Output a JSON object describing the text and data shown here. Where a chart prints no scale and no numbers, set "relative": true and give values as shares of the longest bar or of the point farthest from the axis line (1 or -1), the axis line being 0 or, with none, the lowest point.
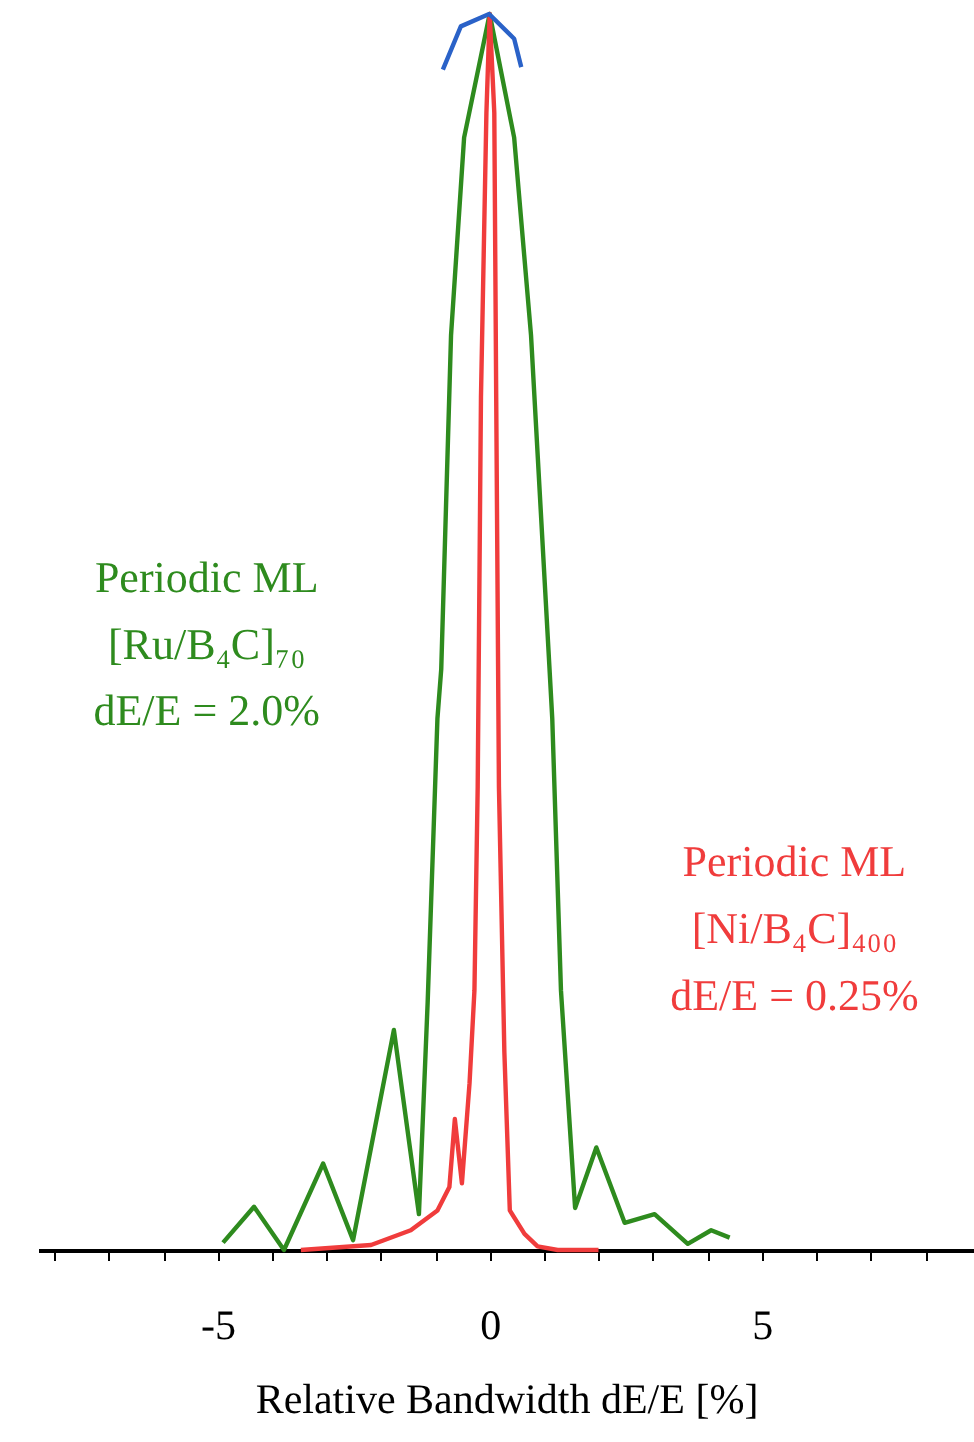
{
  "chart_data": {
    "type": "line",
    "relative": true,
    "xlabel": "Relative Bandwidth dE/E [%]",
    "xlim": [
      -8.3,
      8.9
    ],
    "xticks": [
      {
        "value": -8,
        "label": null
      },
      {
        "value": -7,
        "label": null
      },
      {
        "value": -6,
        "label": null
      },
      -5,
      {
        "value": -4,
        "label": null
      },
      {
        "value": -3,
        "label": null
      },
      {
        "value": -2,
        "label": null
      },
      {
        "value": -1,
        "label": null
      },
      0,
      {
        "value": 1,
        "label": null
      },
      {
        "value": 2,
        "label": null
      },
      {
        "value": 3,
        "label": null
      },
      {
        "value": 4,
        "label": null
      },
      5,
      {
        "value": 6,
        "label": null
      },
      {
        "value": 7,
        "label": null
      },
      {
        "value": 8,
        "label": null
      }
    ],
    "series": [
      {
        "name": "Periodic ML\n[Ru/B₄C]₇₀\ndE/E = 2.0%",
        "color": "#2e8b1e",
        "x": [
          -4.9,
          -4.33,
          -3.78,
          -3.06,
          -2.51,
          -1.76,
          -1.3,
          -1.14,
          -0.96,
          -0.89,
          -0.71,
          -0.47,
          0,
          0.45,
          0.76,
          1.1,
          1.15,
          1.31,
          1.57,
          1.96,
          2.48,
          3.03,
          3.64,
          4.07,
          4.41
        ],
        "values": [
          0.006,
          0.035,
          0,
          0.07,
          0.008,
          0.178,
          0.029,
          0.2,
          0.43,
          0.47,
          0.74,
          0.9,
          1,
          0.9,
          0.74,
          0.47,
          0.43,
          0.21,
          0.034,
          0.083,
          0.022,
          0.029,
          0.005,
          0.016,
          0.01
        ]
      },
      {
        "name": "Periodic ML\n[Ni/B₄C]₄₀₀\ndE/E = 0.25%",
        "color": "#f03c3c",
        "x": [
          -3.47,
          -2.18,
          -1.45,
          -0.96,
          -0.74,
          -0.64,
          -0.51,
          -0.37,
          -0.28,
          -0.22,
          -0.16,
          -0.06,
          0,
          0.085,
          0.12,
          0.17,
          0.27,
          0.37,
          0.64,
          0.88,
          1.25,
          2.0
        ],
        "values": [
          0,
          0.004,
          0.016,
          0.032,
          0.051,
          0.106,
          0.054,
          0.135,
          0.21,
          0.375,
          0.69,
          0.92,
          1,
          0.92,
          0.69,
          0.375,
          0.16,
          0.032,
          0.013,
          0.003,
          0,
          0
        ]
      },
      {
        "color": "#2a62c8",
        "x": [
          -0.86,
          -0.53,
          -0.01,
          0.45,
          0.58
        ],
        "values": [
          0.955,
          0.99,
          1,
          0.98,
          0.957
        ]
      }
    ]
  }
}
